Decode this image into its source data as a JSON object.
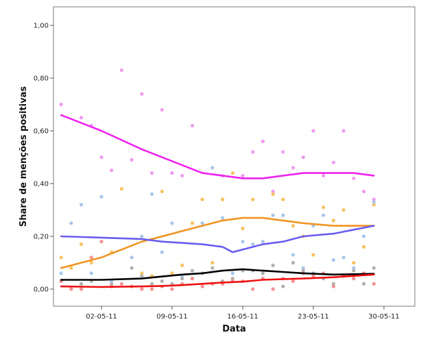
{
  "chart_data": {
    "type": "scatter",
    "xlabel": "Data",
    "ylabel": "Share de menções positivas",
    "x_axis": {
      "min_day": 26,
      "max_day": 59,
      "ticks": [
        {
          "day": 32,
          "label": "02-05-11"
        },
        {
          "day": 39,
          "label": "09-05-11"
        },
        {
          "day": 46,
          "label": "16-05-11"
        },
        {
          "day": 53,
          "label": "23-05-11"
        },
        {
          "day": 60,
          "label": "30-05-11"
        }
      ]
    },
    "y_axis": {
      "min": -0.05,
      "max": 1.05,
      "ticks": [
        {
          "value": 0.0,
          "label": "0,00"
        },
        {
          "value": 0.2,
          "label": "0,20"
        },
        {
          "value": 0.4,
          "label": "0,40"
        },
        {
          "value": 0.6,
          "label": "0,60"
        },
        {
          "value": 0.8,
          "label": "0,80"
        },
        {
          "value": 1.0,
          "label": "1,00"
        }
      ]
    },
    "grid": false,
    "series": [
      {
        "color": "#ee22ee",
        "point_color": "#f09af0",
        "fit": [
          [
            28,
            0.66
          ],
          [
            32,
            0.6
          ],
          [
            36,
            0.53
          ],
          [
            40,
            0.47
          ],
          [
            42,
            0.44
          ],
          [
            44,
            0.43
          ],
          [
            46,
            0.42
          ],
          [
            48,
            0.42
          ],
          [
            50,
            0.43
          ],
          [
            52,
            0.44
          ],
          [
            55,
            0.44
          ],
          [
            57,
            0.44
          ],
          [
            59,
            0.43
          ]
        ],
        "points": [
          [
            28,
            0.7
          ],
          [
            30,
            0.65
          ],
          [
            31,
            0.62
          ],
          [
            32,
            0.5
          ],
          [
            33,
            0.45
          ],
          [
            34,
            0.83
          ],
          [
            35,
            0.49
          ],
          [
            36,
            0.74
          ],
          [
            37,
            0.44
          ],
          [
            38,
            0.68
          ],
          [
            39,
            0.44
          ],
          [
            40,
            0.43
          ],
          [
            41,
            0.62
          ],
          [
            44,
            0.43
          ],
          [
            46,
            0.43
          ],
          [
            47,
            0.52
          ],
          [
            48,
            0.56
          ],
          [
            49,
            0.37
          ],
          [
            50,
            0.52
          ],
          [
            51,
            0.46
          ],
          [
            52,
            0.5
          ],
          [
            53,
            0.6
          ],
          [
            54,
            0.43
          ],
          [
            55,
            0.48
          ],
          [
            56,
            0.6
          ],
          [
            57,
            0.42
          ],
          [
            58,
            0.37
          ],
          [
            59,
            0.34
          ]
        ]
      },
      {
        "color": "#f09422",
        "point_color": "#f7c260",
        "fit": [
          [
            28,
            0.08
          ],
          [
            32,
            0.12
          ],
          [
            36,
            0.18
          ],
          [
            40,
            0.22
          ],
          [
            44,
            0.26
          ],
          [
            46,
            0.27
          ],
          [
            48,
            0.27
          ],
          [
            50,
            0.26
          ],
          [
            52,
            0.25
          ],
          [
            55,
            0.24
          ],
          [
            59,
            0.24
          ]
        ],
        "points": [
          [
            28,
            0.12
          ],
          [
            29,
            0.08
          ],
          [
            30,
            0.17
          ],
          [
            31,
            0.1
          ],
          [
            33,
            0.14
          ],
          [
            34,
            0.38
          ],
          [
            35,
            0.12
          ],
          [
            36,
            0.06
          ],
          [
            37,
            0.05
          ],
          [
            38,
            0.37
          ],
          [
            39,
            0.06
          ],
          [
            40,
            0.09
          ],
          [
            41,
            0.25
          ],
          [
            42,
            0.34
          ],
          [
            43,
            0.1
          ],
          [
            44,
            0.34
          ],
          [
            45,
            0.44
          ],
          [
            46,
            0.23
          ],
          [
            47,
            0.34
          ],
          [
            48,
            0.18
          ],
          [
            49,
            0.36
          ],
          [
            50,
            0.34
          ],
          [
            51,
            0.24
          ],
          [
            52,
            0.2
          ],
          [
            53,
            0.13
          ],
          [
            54,
            0.31
          ],
          [
            55,
            0.26
          ],
          [
            56,
            0.3
          ],
          [
            57,
            0.1
          ],
          [
            58,
            0.16
          ],
          [
            59,
            0.32
          ]
        ]
      },
      {
        "color": "#6a5cf0",
        "point_color": "#a8c6ea",
        "fit": [
          [
            28,
            0.2
          ],
          [
            32,
            0.195
          ],
          [
            36,
            0.19
          ],
          [
            38,
            0.18
          ],
          [
            40,
            0.175
          ],
          [
            42,
            0.17
          ],
          [
            44,
            0.16
          ],
          [
            45,
            0.14
          ],
          [
            46,
            0.15
          ],
          [
            48,
            0.17
          ],
          [
            50,
            0.18
          ],
          [
            52,
            0.2
          ],
          [
            55,
            0.21
          ],
          [
            59,
            0.24
          ]
        ],
        "points": [
          [
            28,
            0.06
          ],
          [
            29,
            0.25
          ],
          [
            30,
            0.32
          ],
          [
            31,
            0.06
          ],
          [
            32,
            0.35
          ],
          [
            33,
            0.03
          ],
          [
            35,
            0.12
          ],
          [
            36,
            0.2
          ],
          [
            37,
            0.36
          ],
          [
            38,
            0.14
          ],
          [
            39,
            0.25
          ],
          [
            40,
            0.05
          ],
          [
            41,
            0.04
          ],
          [
            42,
            0.25
          ],
          [
            43,
            0.46
          ],
          [
            44,
            0.27
          ],
          [
            45,
            0.06
          ],
          [
            46,
            0.18
          ],
          [
            47,
            0.17
          ],
          [
            48,
            0.18
          ],
          [
            49,
            0.28
          ],
          [
            50,
            0.28
          ],
          [
            51,
            0.13
          ],
          [
            52,
            0.08
          ],
          [
            53,
            0.24
          ],
          [
            54,
            0.28
          ],
          [
            55,
            0.11
          ],
          [
            56,
            0.12
          ],
          [
            57,
            0.08
          ],
          [
            58,
            0.2
          ],
          [
            59,
            0.33
          ]
        ]
      },
      {
        "color": "#000000",
        "point_color": "#b0b0b0",
        "fit": [
          [
            28,
            0.035
          ],
          [
            32,
            0.035
          ],
          [
            36,
            0.04
          ],
          [
            40,
            0.055
          ],
          [
            42,
            0.06
          ],
          [
            44,
            0.07
          ],
          [
            46,
            0.075
          ],
          [
            48,
            0.07
          ],
          [
            50,
            0.065
          ],
          [
            52,
            0.06
          ],
          [
            55,
            0.055
          ],
          [
            59,
            0.058
          ]
        ],
        "points": [
          [
            28,
            0.03
          ],
          [
            29,
            0.0
          ],
          [
            30,
            0.02
          ],
          [
            31,
            0.03
          ],
          [
            33,
            0.02
          ],
          [
            35,
            0.08
          ],
          [
            36,
            0.05
          ],
          [
            37,
            0.02
          ],
          [
            38,
            0.03
          ],
          [
            39,
            0.02
          ],
          [
            40,
            0.04
          ],
          [
            41,
            0.07
          ],
          [
            42,
            0.06
          ],
          [
            43,
            0.08
          ],
          [
            44,
            0.03
          ],
          [
            45,
            0.04
          ],
          [
            46,
            0.07
          ],
          [
            47,
            0.07
          ],
          [
            48,
            0.06
          ],
          [
            49,
            0.09
          ],
          [
            50,
            0.01
          ],
          [
            51,
            0.1
          ],
          [
            52,
            0.07
          ],
          [
            53,
            0.06
          ],
          [
            54,
            0.04
          ],
          [
            55,
            0.02
          ],
          [
            56,
            0.05
          ],
          [
            57,
            0.07
          ],
          [
            58,
            0.02
          ],
          [
            59,
            0.08
          ]
        ]
      },
      {
        "color": "#ee1111",
        "point_color": "#f59090",
        "fit": [
          [
            28,
            0.01
          ],
          [
            32,
            0.008
          ],
          [
            36,
            0.01
          ],
          [
            38,
            0.012
          ],
          [
            40,
            0.015
          ],
          [
            42,
            0.02
          ],
          [
            44,
            0.025
          ],
          [
            46,
            0.028
          ],
          [
            48,
            0.035
          ],
          [
            50,
            0.038
          ],
          [
            52,
            0.04
          ],
          [
            55,
            0.045
          ],
          [
            59,
            0.055
          ]
        ],
        "points": [
          [
            28,
            0.03
          ],
          [
            29,
            0.0
          ],
          [
            30,
            0.0
          ],
          [
            31,
            0.12
          ],
          [
            32,
            0.18
          ],
          [
            33,
            0.01
          ],
          [
            34,
            0.02
          ],
          [
            35,
            0.01
          ],
          [
            36,
            0.0
          ],
          [
            37,
            0.0
          ],
          [
            38,
            0.01
          ],
          [
            39,
            0.0
          ],
          [
            40,
            0.02
          ],
          [
            41,
            0.04
          ],
          [
            42,
            0.01
          ],
          [
            43,
            0.02
          ],
          [
            44,
            0.02
          ],
          [
            45,
            0.03
          ],
          [
            46,
            0.03
          ],
          [
            47,
            0.0
          ],
          [
            48,
            0.04
          ],
          [
            49,
            0.0
          ],
          [
            50,
            0.04
          ],
          [
            51,
            0.03
          ],
          [
            52,
            0.06
          ],
          [
            53,
            0.05
          ],
          [
            54,
            0.06
          ],
          [
            55,
            0.01
          ],
          [
            56,
            0.05
          ],
          [
            57,
            0.04
          ],
          [
            58,
            0.06
          ],
          [
            59,
            0.02
          ]
        ]
      }
    ]
  }
}
